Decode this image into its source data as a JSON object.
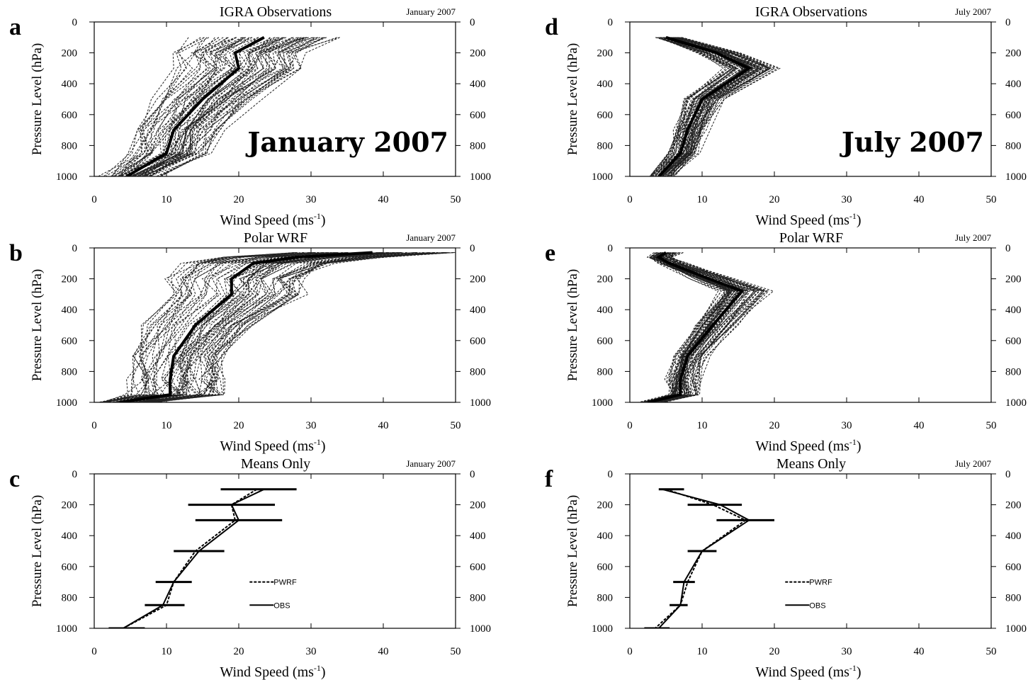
{
  "chart_data": [
    {
      "panel": "a",
      "type": "line",
      "title": "IGRA Observations",
      "date": "January 2007",
      "overlay": "January 2007",
      "xlabel": "Wind Speed (ms-1)",
      "ylabel": "Pressure Level (hPa)",
      "xlim": [
        0,
        50
      ],
      "ylim": [
        1000,
        0
      ],
      "xticks": [
        "0",
        "10",
        "20",
        "30",
        "40",
        "50"
      ],
      "yticks": [
        "0",
        "200",
        "400",
        "600",
        "800",
        "1000"
      ],
      "yticks_right": [
        "0",
        "200",
        "400",
        "600",
        "800",
        "1000"
      ],
      "series": [
        {
          "style": "mean",
          "points": [
            [
              23.5,
              100
            ],
            [
              19.5,
              200
            ],
            [
              20,
              300
            ],
            [
              15,
              500
            ],
            [
              11,
              700
            ],
            [
              10,
              850
            ],
            [
              4.5,
              1000
            ]
          ]
        }
      ]
    },
    {
      "panel": "b",
      "type": "line",
      "title": "Polar WRF",
      "date": "January 2007",
      "xlabel": "Wind Speed (ms-1)",
      "ylabel": "Pressure Level (hPa)",
      "xlim": [
        0,
        50
      ],
      "ylim": [
        1000,
        0
      ],
      "xticks": [
        "0",
        "10",
        "20",
        "30",
        "40",
        "50"
      ],
      "yticks": [
        "0",
        "200",
        "400",
        "600",
        "800",
        "1000"
      ],
      "yticks_right": [
        "0",
        "200",
        "400",
        "600",
        "800",
        "1000"
      ],
      "series": [
        {
          "style": "mean",
          "points": [
            [
              38.5,
              30
            ],
            [
              28,
              60
            ],
            [
              22,
              100
            ],
            [
              19,
              200
            ],
            [
              19,
              300
            ],
            [
              14,
              500
            ],
            [
              11,
              700
            ],
            [
              10.5,
              850
            ],
            [
              10.5,
              950
            ],
            [
              3.5,
              1000
            ]
          ]
        }
      ]
    },
    {
      "panel": "c",
      "type": "line",
      "title": "Means Only",
      "date": "January 2007",
      "xlabel": "Wind Speed (ms-1)",
      "ylabel": "Pressure Level (hPa)",
      "xlim": [
        0,
        50
      ],
      "ylim": [
        1000,
        0
      ],
      "xticks": [
        "0",
        "10",
        "20",
        "30",
        "40",
        "50"
      ],
      "yticks": [
        "0",
        "200",
        "400",
        "600",
        "800",
        "1000"
      ],
      "yticks_right": [
        "0",
        "200",
        "400",
        "600",
        "800",
        "1000"
      ],
      "legend": [
        "PWRF",
        "OBS"
      ],
      "series": [
        {
          "name": "PWRF",
          "style": "dashed",
          "points": [
            [
              22.5,
              100
            ],
            [
              19,
              200
            ],
            [
              19.5,
              300
            ],
            [
              14,
              500
            ],
            [
              11,
              700
            ],
            [
              10,
              850
            ],
            [
              4,
              1000
            ]
          ]
        },
        {
          "name": "OBS",
          "style": "solid",
          "points": [
            [
              23.5,
              100
            ],
            [
              19,
              200
            ],
            [
              20,
              300
            ],
            [
              14.5,
              500
            ],
            [
              11,
              700
            ],
            [
              9.5,
              850
            ],
            [
              4,
              1000
            ]
          ]
        }
      ],
      "errorbars": [
        [
          100,
          17.5,
          28
        ],
        [
          200,
          13,
          25
        ],
        [
          300,
          14,
          26
        ],
        [
          500,
          11,
          18
        ],
        [
          700,
          8.5,
          13.5
        ],
        [
          850,
          7,
          12.5
        ],
        [
          1000,
          2,
          7
        ]
      ]
    },
    {
      "panel": "d",
      "type": "line",
      "title": "IGRA Observations",
      "date": "July 2007",
      "overlay": "July 2007",
      "xlabel": "Wind Speed (ms-1)",
      "ylabel": "Pressure Level (hPa)",
      "xlim": [
        0,
        50
      ],
      "ylim": [
        1000,
        0
      ],
      "xticks": [
        "0",
        "10",
        "20",
        "30",
        "40",
        "50"
      ],
      "yticks": [
        "0",
        "200",
        "400",
        "600",
        "800",
        "1000"
      ],
      "yticks_right": [
        "0",
        "200",
        "400",
        "600",
        "800",
        "1000"
      ],
      "series": [
        {
          "style": "mean",
          "points": [
            [
              5,
              100
            ],
            [
              12,
              200
            ],
            [
              16.5,
              300
            ],
            [
              10,
              500
            ],
            [
              8,
              700
            ],
            [
              7,
              850
            ],
            [
              4,
              1000
            ]
          ]
        }
      ]
    },
    {
      "panel": "e",
      "type": "line",
      "title": "Polar WRF",
      "date": "July 2007",
      "xlabel": "Wind Speed (ms-1)",
      "ylabel": "Pressure Level (hPa)",
      "xlim": [
        0,
        50
      ],
      "ylim": [
        1000,
        0
      ],
      "xticks": [
        "0",
        "10",
        "20",
        "30",
        "40",
        "50"
      ],
      "yticks": [
        "0",
        "200",
        "400",
        "600",
        "800",
        "1000"
      ],
      "yticks_right": [
        "0",
        "200",
        "400",
        "600",
        "800",
        "1000"
      ],
      "series": [
        {
          "style": "mean",
          "points": [
            [
              5,
              30
            ],
            [
              4,
              60
            ],
            [
              5.5,
              100
            ],
            [
              11,
              200
            ],
            [
              15.5,
              280
            ],
            [
              11.5,
              500
            ],
            [
              8,
              700
            ],
            [
              7,
              850
            ],
            [
              7,
              950
            ],
            [
              2.5,
              1000
            ]
          ]
        }
      ]
    },
    {
      "panel": "f",
      "type": "line",
      "title": "Means Only",
      "date": "July 2007",
      "xlabel": "Wind Speed (ms-1)",
      "ylabel": "Pressure Level (hPa)",
      "xlim": [
        0,
        50
      ],
      "ylim": [
        1000,
        0
      ],
      "xticks": [
        "0",
        "10",
        "20",
        "30",
        "40",
        "50"
      ],
      "yticks": [
        "0",
        "200",
        "400",
        "600",
        "800",
        "1000"
      ],
      "yticks_right": [
        "0",
        "200",
        "400",
        "600",
        "800",
        "1000"
      ],
      "legend": [
        "PWRF",
        "OBS"
      ],
      "series": [
        {
          "name": "PWRF",
          "style": "dashed",
          "points": [
            [
              5,
              100
            ],
            [
              11.5,
              200
            ],
            [
              16,
              300
            ],
            [
              10,
              500
            ],
            [
              8,
              700
            ],
            [
              7,
              850
            ],
            [
              3.5,
              1000
            ]
          ]
        },
        {
          "name": "OBS",
          "style": "solid",
          "points": [
            [
              4.5,
              100
            ],
            [
              12.5,
              200
            ],
            [
              16.5,
              300
            ],
            [
              10,
              500
            ],
            [
              7.5,
              700
            ],
            [
              7,
              850
            ],
            [
              4,
              1000
            ]
          ]
        }
      ],
      "errorbars": [
        [
          100,
          4,
          7.5
        ],
        [
          200,
          8,
          15.5
        ],
        [
          300,
          12,
          20
        ],
        [
          500,
          8,
          12
        ],
        [
          700,
          6,
          9
        ],
        [
          850,
          5.5,
          8
        ],
        [
          1000,
          2,
          5.5
        ]
      ]
    }
  ]
}
